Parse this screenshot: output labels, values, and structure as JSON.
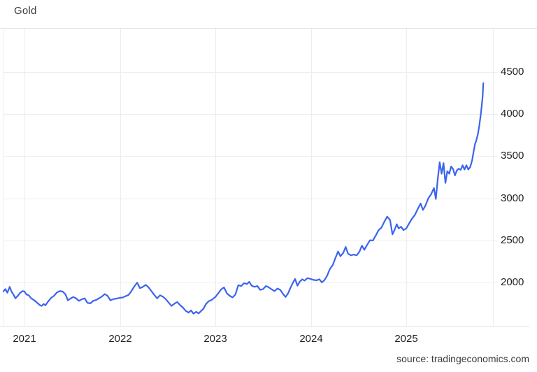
{
  "header": {
    "title": "Gold"
  },
  "footer": {
    "source_label": "source: tradingeconomics.com"
  },
  "chart_data": {
    "type": "line",
    "title": "Gold",
    "xlabel": "",
    "ylabel": "",
    "legend": "none",
    "grid": "on",
    "line_color": "#3b64ec",
    "grid_color": "#ededed",
    "frame_color": "#e3e3e3",
    "tick_label_color": "#1f1f1f",
    "xlim": [
      2020.78,
      2025.908
    ],
    "ylim": [
      1485,
      5023
    ],
    "xticks": [
      2021,
      2022,
      2023,
      2024,
      2025
    ],
    "xtick_labels": [
      "2021",
      "2022",
      "2023",
      "2024",
      "2025"
    ],
    "yticks": [
      2000,
      2500,
      3000,
      3500,
      4000,
      4500
    ],
    "ytick_labels": [
      "2000",
      "2500",
      "3000",
      "3500",
      "4000",
      "4500"
    ],
    "series": [
      {
        "name": "Gold",
        "points": [
          [
            2020.78,
            1895
          ],
          [
            2020.8,
            1922
          ],
          [
            2020.82,
            1878
          ],
          [
            2020.845,
            1948
          ],
          [
            2020.865,
            1890
          ],
          [
            2020.885,
            1855
          ],
          [
            2020.905,
            1812
          ],
          [
            2020.93,
            1842
          ],
          [
            2020.955,
            1878
          ],
          [
            2020.98,
            1898
          ],
          [
            2021.0,
            1892
          ],
          [
            2021.02,
            1858
          ],
          [
            2021.045,
            1848
          ],
          [
            2021.07,
            1812
          ],
          [
            2021.1,
            1790
          ],
          [
            2021.13,
            1762
          ],
          [
            2021.16,
            1732
          ],
          [
            2021.18,
            1722
          ],
          [
            2021.2,
            1745
          ],
          [
            2021.22,
            1730
          ],
          [
            2021.25,
            1778
          ],
          [
            2021.28,
            1818
          ],
          [
            2021.31,
            1842
          ],
          [
            2021.34,
            1882
          ],
          [
            2021.37,
            1898
          ],
          [
            2021.4,
            1892
          ],
          [
            2021.43,
            1858
          ],
          [
            2021.455,
            1788
          ],
          [
            2021.48,
            1808
          ],
          [
            2021.51,
            1828
          ],
          [
            2021.54,
            1812
          ],
          [
            2021.57,
            1782
          ],
          [
            2021.6,
            1800
          ],
          [
            2021.63,
            1812
          ],
          [
            2021.66,
            1758
          ],
          [
            2021.69,
            1752
          ],
          [
            2021.72,
            1782
          ],
          [
            2021.75,
            1792
          ],
          [
            2021.78,
            1812
          ],
          [
            2021.81,
            1832
          ],
          [
            2021.84,
            1862
          ],
          [
            2021.87,
            1842
          ],
          [
            2021.9,
            1788
          ],
          [
            2021.93,
            1802
          ],
          [
            2021.96,
            1808
          ],
          [
            2022.0,
            1818
          ],
          [
            2022.03,
            1822
          ],
          [
            2022.06,
            1838
          ],
          [
            2022.09,
            1852
          ],
          [
            2022.12,
            1898
          ],
          [
            2022.15,
            1952
          ],
          [
            2022.18,
            1998
          ],
          [
            2022.21,
            1932
          ],
          [
            2022.24,
            1948
          ],
          [
            2022.27,
            1972
          ],
          [
            2022.3,
            1942
          ],
          [
            2022.33,
            1898
          ],
          [
            2022.36,
            1852
          ],
          [
            2022.39,
            1812
          ],
          [
            2022.42,
            1848
          ],
          [
            2022.45,
            1832
          ],
          [
            2022.48,
            1802
          ],
          [
            2022.51,
            1762
          ],
          [
            2022.54,
            1722
          ],
          [
            2022.57,
            1748
          ],
          [
            2022.6,
            1768
          ],
          [
            2022.63,
            1732
          ],
          [
            2022.66,
            1702
          ],
          [
            2022.69,
            1662
          ],
          [
            2022.72,
            1642
          ],
          [
            2022.745,
            1668
          ],
          [
            2022.77,
            1630
          ],
          [
            2022.8,
            1652
          ],
          [
            2022.825,
            1632
          ],
          [
            2022.85,
            1662
          ],
          [
            2022.875,
            1688
          ],
          [
            2022.9,
            1742
          ],
          [
            2022.93,
            1778
          ],
          [
            2022.96,
            1792
          ],
          [
            2023.0,
            1828
          ],
          [
            2023.03,
            1872
          ],
          [
            2023.06,
            1918
          ],
          [
            2023.09,
            1942
          ],
          [
            2023.12,
            1872
          ],
          [
            2023.15,
            1842
          ],
          [
            2023.18,
            1822
          ],
          [
            2023.21,
            1858
          ],
          [
            2023.24,
            1968
          ],
          [
            2023.27,
            1958
          ],
          [
            2023.3,
            1992
          ],
          [
            2023.33,
            1982
          ],
          [
            2023.355,
            2008
          ],
          [
            2023.38,
            1962
          ],
          [
            2023.41,
            1948
          ],
          [
            2023.44,
            1958
          ],
          [
            2023.47,
            1912
          ],
          [
            2023.5,
            1922
          ],
          [
            2023.53,
            1958
          ],
          [
            2023.56,
            1942
          ],
          [
            2023.59,
            1918
          ],
          [
            2023.62,
            1898
          ],
          [
            2023.65,
            1928
          ],
          [
            2023.68,
            1912
          ],
          [
            2023.71,
            1862
          ],
          [
            2023.735,
            1828
          ],
          [
            2023.76,
            1868
          ],
          [
            2023.785,
            1932
          ],
          [
            2023.81,
            1992
          ],
          [
            2023.835,
            2042
          ],
          [
            2023.86,
            1962
          ],
          [
            2023.885,
            2012
          ],
          [
            2023.91,
            2038
          ],
          [
            2023.935,
            2022
          ],
          [
            2023.965,
            2052
          ],
          [
            2024.0,
            2042
          ],
          [
            2024.03,
            2030
          ],
          [
            2024.06,
            2026
          ],
          [
            2024.09,
            2038
          ],
          [
            2024.115,
            2002
          ],
          [
            2024.14,
            2024
          ],
          [
            2024.17,
            2078
          ],
          [
            2024.2,
            2162
          ],
          [
            2024.23,
            2208
          ],
          [
            2024.26,
            2298
          ],
          [
            2024.285,
            2368
          ],
          [
            2024.31,
            2312
          ],
          [
            2024.34,
            2352
          ],
          [
            2024.365,
            2422
          ],
          [
            2024.39,
            2342
          ],
          [
            2024.42,
            2322
          ],
          [
            2024.45,
            2332
          ],
          [
            2024.48,
            2322
          ],
          [
            2024.51,
            2368
          ],
          [
            2024.535,
            2438
          ],
          [
            2024.56,
            2388
          ],
          [
            2024.59,
            2448
          ],
          [
            2024.62,
            2502
          ],
          [
            2024.65,
            2498
          ],
          [
            2024.68,
            2558
          ],
          [
            2024.71,
            2622
          ],
          [
            2024.74,
            2652
          ],
          [
            2024.77,
            2722
          ],
          [
            2024.8,
            2782
          ],
          [
            2024.83,
            2742
          ],
          [
            2024.855,
            2572
          ],
          [
            2024.88,
            2632
          ],
          [
            2024.9,
            2692
          ],
          [
            2024.92,
            2642
          ],
          [
            2024.945,
            2662
          ],
          [
            2024.97,
            2622
          ],
          [
            2025.0,
            2642
          ],
          [
            2025.03,
            2702
          ],
          [
            2025.06,
            2758
          ],
          [
            2025.09,
            2802
          ],
          [
            2025.12,
            2872
          ],
          [
            2025.15,
            2938
          ],
          [
            2025.175,
            2862
          ],
          [
            2025.2,
            2912
          ],
          [
            2025.23,
            2998
          ],
          [
            2025.26,
            3048
          ],
          [
            2025.29,
            3122
          ],
          [
            2025.31,
            2992
          ],
          [
            2025.33,
            3232
          ],
          [
            2025.35,
            3428
          ],
          [
            2025.37,
            3292
          ],
          [
            2025.39,
            3418
          ],
          [
            2025.41,
            3182
          ],
          [
            2025.43,
            3322
          ],
          [
            2025.45,
            3292
          ],
          [
            2025.47,
            3378
          ],
          [
            2025.49,
            3348
          ],
          [
            2025.51,
            3272
          ],
          [
            2025.53,
            3332
          ],
          [
            2025.55,
            3352
          ],
          [
            2025.57,
            3338
          ],
          [
            2025.59,
            3392
          ],
          [
            2025.61,
            3342
          ],
          [
            2025.63,
            3392
          ],
          [
            2025.65,
            3342
          ],
          [
            2025.67,
            3372
          ],
          [
            2025.69,
            3452
          ],
          [
            2025.705,
            3552
          ],
          [
            2025.72,
            3642
          ],
          [
            2025.735,
            3692
          ],
          [
            2025.75,
            3762
          ],
          [
            2025.765,
            3862
          ],
          [
            2025.78,
            3992
          ],
          [
            2025.79,
            4092
          ],
          [
            2025.8,
            4212
          ],
          [
            2025.807,
            4368
          ]
        ]
      }
    ]
  }
}
